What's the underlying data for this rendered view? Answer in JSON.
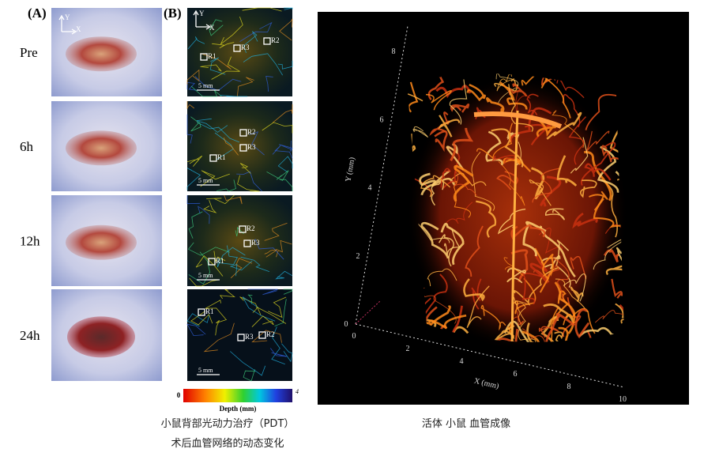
{
  "panel_a": {
    "label": "(A)",
    "axis_y": "Y",
    "axis_x": "X",
    "rows": [
      "Pre",
      "6h",
      "12h",
      "24h"
    ]
  },
  "panel_b": {
    "label": "(B)",
    "axis_y": "Y",
    "axis_x": "X",
    "images": [
      {
        "regions": [
          "R1",
          "R3",
          "R2"
        ],
        "scale_bar": "5 mm"
      },
      {
        "regions": [
          "R2",
          "R3",
          "R1"
        ],
        "scale_bar": "5 mm"
      },
      {
        "regions": [
          "R2",
          "R3",
          "R1"
        ],
        "scale_bar": "5 mm"
      },
      {
        "regions": [
          "R1",
          "R3",
          "R2"
        ],
        "scale_bar": "5 mm"
      }
    ],
    "colorbar": {
      "min": 0,
      "max": 4,
      "title": "Depth (mm)"
    }
  },
  "panel_3d": {
    "y_label": "Y (mm)",
    "x_label": "X (mm)",
    "x_ticks": [
      0,
      2,
      4,
      6,
      8,
      10
    ],
    "y_ticks": [
      0,
      2,
      4,
      6,
      8
    ]
  },
  "captions": {
    "left": [
      "小鼠背部光动力治疗（PDT）",
      "术后血管网络的动态变化"
    ],
    "right": "活体 小鼠 血管成像"
  }
}
